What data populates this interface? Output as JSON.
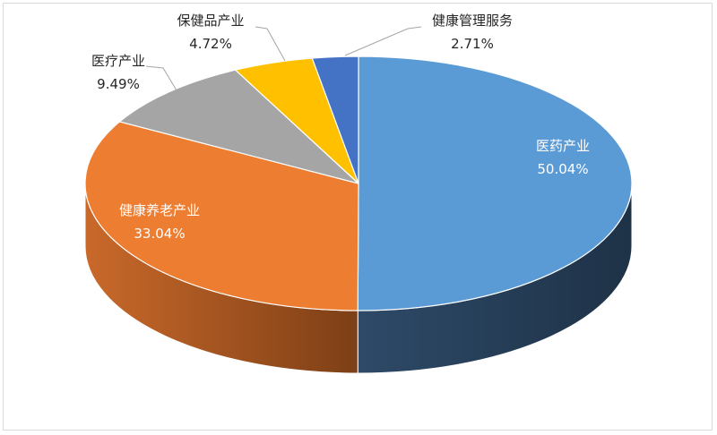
{
  "chart_data": {
    "type": "pie",
    "style": "3d",
    "start": "top",
    "direction": "clockwise",
    "legend": "none",
    "slices": [
      {
        "label": "医药产业",
        "value": 50.04,
        "value_label": "50.04%",
        "color": "#5b9bd5",
        "side_color": "#22384f",
        "label_color": "#ffffff"
      },
      {
        "label": "健康养老产业",
        "value": 33.04,
        "value_label": "33.04%",
        "color": "#ed7d31",
        "side_color": "#a9531b",
        "label_color": "#ffffff"
      },
      {
        "label": "医疗产业",
        "value": 9.49,
        "value_label": "9.49%",
        "color": "#a5a5a5",
        "side_color": "#6e6e6e",
        "label_color": "#262626"
      },
      {
        "label": "保健品产业",
        "value": 4.72,
        "value_label": "4.72%",
        "color": "#ffc000",
        "side_color": "#b38600",
        "label_color": "#262626"
      },
      {
        "label": "健康管理服务",
        "value": 2.71,
        "value_label": "2.71%",
        "color": "#4472c4",
        "side_color": "#2c4d86",
        "label_color": "#262626"
      }
    ]
  }
}
